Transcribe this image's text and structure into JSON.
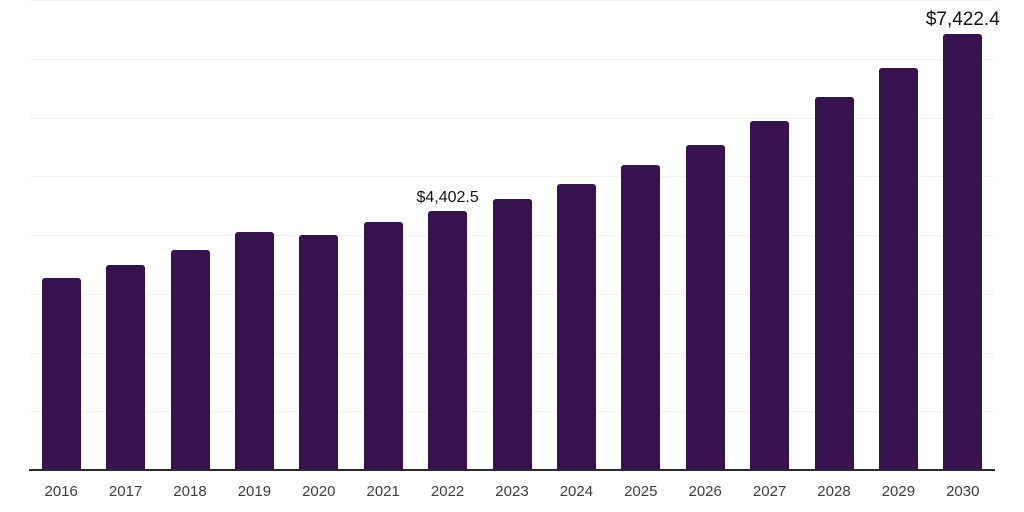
{
  "chart_data": {
    "type": "bar",
    "title": "",
    "xlabel": "",
    "ylabel": "",
    "categories": [
      "2016",
      "2017",
      "2018",
      "2019",
      "2020",
      "2021",
      "2022",
      "2023",
      "2024",
      "2025",
      "2026",
      "2027",
      "2028",
      "2029",
      "2030"
    ],
    "values": [
      3275,
      3485,
      3750,
      4050,
      3995,
      4220,
      4402.5,
      4605,
      4875,
      5195,
      5530,
      5935,
      6345,
      6845,
      7422.4
    ],
    "annotations": [
      {
        "category": "2022",
        "label": "$4,402.5",
        "emphasis": false
      },
      {
        "category": "2030",
        "label": "$7,422.4",
        "emphasis": true
      }
    ],
    "ylim": [
      0,
      8000
    ],
    "gridline_step": 1000,
    "grid": "horizontal",
    "legend": "none",
    "y_tick_labels_visible": false,
    "colors": {
      "bar": "#36124e",
      "gridline": "#f2f2f2",
      "axis_line": "#2b2b2b",
      "tick_label": "#3d3d3d",
      "annotation": "#141414",
      "background": "#ffffff"
    }
  }
}
